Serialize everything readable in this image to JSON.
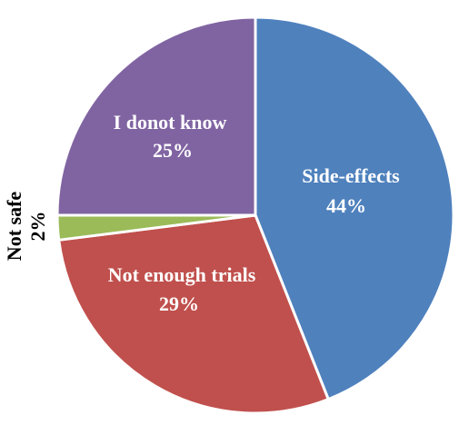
{
  "chart_data": {
    "type": "pie",
    "slices": [
      {
        "label": "Side-effects",
        "value": 44,
        "value_label": "44%",
        "color": "#4f81bd"
      },
      {
        "label": "Not enough trials",
        "value": 29,
        "value_label": "29%",
        "color": "#c0504d"
      },
      {
        "label": "Not safe",
        "value": 2,
        "value_label": "2%",
        "color": "#9bbb59"
      },
      {
        "label": "I donot know",
        "value": 25,
        "value_label": "25%",
        "color": "#8064a2"
      }
    ],
    "start_angle": "12 o'clock",
    "direction": "clockwise",
    "slice_border_color": "#ffffff",
    "legend": "none"
  }
}
